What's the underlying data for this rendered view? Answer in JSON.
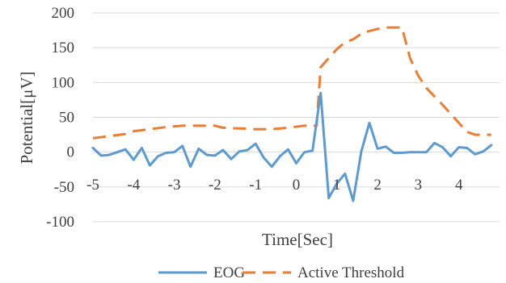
{
  "chart_data": {
    "type": "line",
    "title": "",
    "xlabel": "Time[Sec]",
    "ylabel": "Potential[μV]",
    "xlim": [
      -5.0,
      5.0
    ],
    "ylim": [
      -100,
      200
    ],
    "x_ticks": [
      "-5",
      "-4",
      "-3",
      "-2",
      "-1",
      "0",
      "1",
      "2",
      "3",
      "4"
    ],
    "y_ticks": [
      "200",
      "150",
      "100",
      "50",
      "0",
      "-50",
      "-100"
    ],
    "grid": true,
    "legend_position": "bottom",
    "series": [
      {
        "name": "EOG",
        "color": "#5b9bd5",
        "dash": "solid",
        "points": [
          [
            -5.0,
            6
          ],
          [
            -4.8,
            -5
          ],
          [
            -4.6,
            -4
          ],
          [
            -4.4,
            0
          ],
          [
            -4.2,
            4
          ],
          [
            -4.0,
            -11
          ],
          [
            -3.8,
            6
          ],
          [
            -3.6,
            -19
          ],
          [
            -3.4,
            -6
          ],
          [
            -3.2,
            -1
          ],
          [
            -3.0,
            0
          ],
          [
            -2.8,
            9
          ],
          [
            -2.6,
            -21
          ],
          [
            -2.4,
            5
          ],
          [
            -2.2,
            -4
          ],
          [
            -2.0,
            -5
          ],
          [
            -1.8,
            3
          ],
          [
            -1.6,
            -10
          ],
          [
            -1.4,
            1
          ],
          [
            -1.2,
            3
          ],
          [
            -1.0,
            12
          ],
          [
            -0.8,
            -8
          ],
          [
            -0.6,
            -21
          ],
          [
            -0.4,
            -6
          ],
          [
            -0.2,
            4
          ],
          [
            0.0,
            -16
          ],
          [
            0.2,
            0
          ],
          [
            0.4,
            2
          ],
          [
            0.6,
            85
          ],
          [
            0.8,
            -66
          ],
          [
            1.0,
            -45
          ],
          [
            1.2,
            -31
          ],
          [
            1.4,
            -70
          ],
          [
            1.6,
            1
          ],
          [
            1.8,
            42
          ],
          [
            2.0,
            5
          ],
          [
            2.2,
            8
          ],
          [
            2.4,
            -1
          ],
          [
            2.6,
            -1
          ],
          [
            2.8,
            0
          ],
          [
            3.0,
            0
          ],
          [
            3.2,
            0
          ],
          [
            3.4,
            13
          ],
          [
            3.6,
            7
          ],
          [
            3.8,
            -6
          ],
          [
            4.0,
            7
          ],
          [
            4.2,
            6
          ],
          [
            4.4,
            -3
          ],
          [
            4.6,
            1
          ],
          [
            4.8,
            10
          ]
        ]
      },
      {
        "name": "Active Threshold",
        "color": "#ed7d31",
        "dash": "dashed",
        "points": [
          [
            -5.0,
            20
          ],
          [
            -4.6,
            23
          ],
          [
            -4.2,
            26
          ],
          [
            -4.0,
            30
          ],
          [
            -3.6,
            33
          ],
          [
            -3.2,
            36
          ],
          [
            -2.8,
            38
          ],
          [
            -2.4,
            38
          ],
          [
            -2.0,
            38
          ],
          [
            -1.8,
            35
          ],
          [
            -1.4,
            34
          ],
          [
            -1.0,
            33
          ],
          [
            -0.6,
            33
          ],
          [
            -0.2,
            35
          ],
          [
            0.2,
            38
          ],
          [
            0.5,
            38
          ],
          [
            0.6,
            122
          ],
          [
            0.8,
            135
          ],
          [
            1.0,
            148
          ],
          [
            1.2,
            158
          ],
          [
            1.4,
            162
          ],
          [
            1.6,
            170
          ],
          [
            1.8,
            174
          ],
          [
            2.0,
            177
          ],
          [
            2.2,
            179
          ],
          [
            2.6,
            179
          ],
          [
            2.8,
            135
          ],
          [
            3.0,
            110
          ],
          [
            3.2,
            92
          ],
          [
            3.4,
            80
          ],
          [
            3.6,
            68
          ],
          [
            3.8,
            55
          ],
          [
            4.0,
            42
          ],
          [
            4.2,
            29
          ],
          [
            4.4,
            25
          ],
          [
            4.8,
            25
          ]
        ]
      }
    ]
  }
}
